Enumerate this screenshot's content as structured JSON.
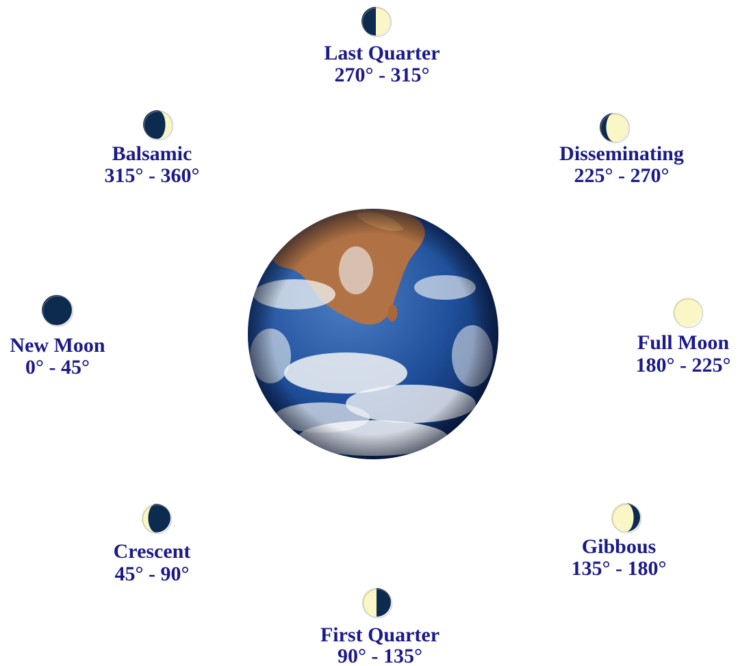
{
  "colors": {
    "label": "#1a1a8a",
    "moon_dark": "#0d2a4f",
    "moon_light": "#fbf6c6",
    "earth_ocean": "#1f4f9a",
    "earth_land": "#b7733f",
    "earth_cloud": "#f2f4f6"
  },
  "phases": [
    {
      "id": "new-moon",
      "name": "New Moon",
      "range": "0° - 45°",
      "illumination": "none"
    },
    {
      "id": "crescent",
      "name": "Crescent",
      "range": "45° - 90°",
      "illumination": "crescent-left"
    },
    {
      "id": "first-quarter",
      "name": "First Quarter",
      "range": "90° - 135°",
      "illumination": "left-half"
    },
    {
      "id": "gibbous",
      "name": "Gibbous",
      "range": "135° - 180°",
      "illumination": "gibbous-left"
    },
    {
      "id": "full-moon",
      "name": "Full Moon",
      "range": "180° - 225°",
      "illumination": "full"
    },
    {
      "id": "disseminating",
      "name": "Disseminating",
      "range": "225° - 270°",
      "illumination": "gibbous-right"
    },
    {
      "id": "last-quarter",
      "name": "Last Quarter",
      "range": "270° - 315°",
      "illumination": "right-half"
    },
    {
      "id": "balsamic",
      "name": "Balsamic",
      "range": "315° - 360°",
      "illumination": "crescent-right"
    }
  ]
}
